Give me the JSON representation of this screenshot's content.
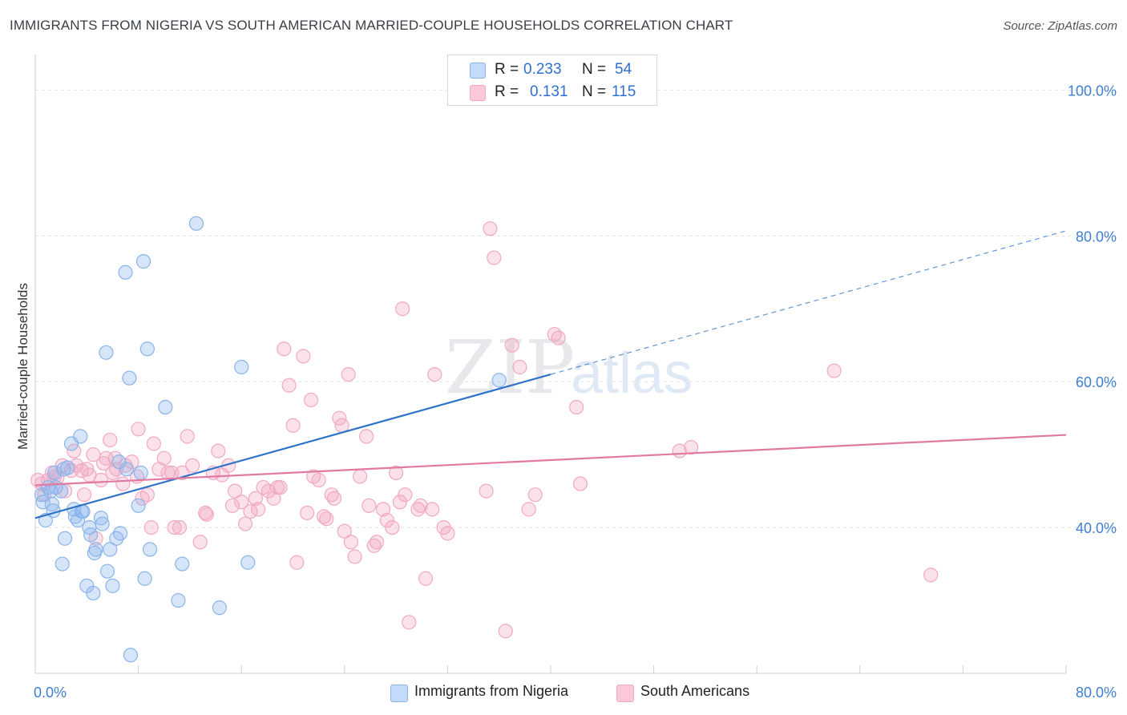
{
  "title": "IMMIGRANTS FROM NIGERIA VS SOUTH AMERICAN MARRIED-COUPLE HOUSEHOLDS CORRELATION CHART",
  "source": "Source: ZipAtlas.com",
  "watermark": {
    "zip": "ZIP",
    "atlas": "atlas"
  },
  "legend": {
    "r_label": "R =",
    "n_label": "N =",
    "series1": {
      "r": "0.233",
      "n": "54"
    },
    "series2": {
      "r": "0.131",
      "n": "115"
    }
  },
  "bottom_legend": [
    "Immigrants from Nigeria",
    "South Americans"
  ],
  "chart_data": {
    "type": "scatter",
    "ylabel": "Married-couple Households",
    "xlabel": "",
    "xlim": [
      0,
      80
    ],
    "ylim": [
      20,
      104
    ],
    "x_tick_labels": [
      "0.0%",
      "80.0%"
    ],
    "y_tick_labels": [
      "40.0%",
      "60.0%",
      "80.0%",
      "100.0%"
    ],
    "y_ticks": [
      40,
      60,
      80,
      100
    ],
    "x_minor_ticks": [
      8,
      16,
      24,
      32,
      40,
      48,
      56,
      64,
      72,
      80
    ],
    "colors": {
      "series1": "#8ab4ec",
      "series2": "#f2a9c3",
      "line1": "#2f73c9",
      "line2": "#e07aa0",
      "axis_text": "#3f7fd1"
    },
    "series": [
      {
        "name": "Immigrants from Nigeria",
        "trend": {
          "x0": 0,
          "y0": 41.3,
          "x1": 40,
          "y1": 61.0,
          "dash_to_x": 80,
          "dash_to_y": 80.7
        },
        "points": [
          [
            0.5,
            44.5
          ],
          [
            0.6,
            43.5
          ],
          [
            0.8,
            41.0
          ],
          [
            1.0,
            45.5
          ],
          [
            1.2,
            45.0
          ],
          [
            1.3,
            43.2
          ],
          [
            1.4,
            42.3
          ],
          [
            1.5,
            47.5
          ],
          [
            1.6,
            45.5
          ],
          [
            2.0,
            45.0
          ],
          [
            2.2,
            48.0
          ],
          [
            2.3,
            38.5
          ],
          [
            2.1,
            35.0
          ],
          [
            2.8,
            51.5
          ],
          [
            3.0,
            42.5
          ],
          [
            3.1,
            41.5
          ],
          [
            3.3,
            41.0
          ],
          [
            3.5,
            52.5
          ],
          [
            3.6,
            42.2
          ],
          [
            3.7,
            42.2
          ],
          [
            4.0,
            32.0
          ],
          [
            4.2,
            40.0
          ],
          [
            4.3,
            39.0
          ],
          [
            4.5,
            31.0
          ],
          [
            4.6,
            36.5
          ],
          [
            4.7,
            37.0
          ],
          [
            5.1,
            41.3
          ],
          [
            5.2,
            40.5
          ],
          [
            5.5,
            64.0
          ],
          [
            5.6,
            34.0
          ],
          [
            5.8,
            37.0
          ],
          [
            6.0,
            32.0
          ],
          [
            6.3,
            38.5
          ],
          [
            6.5,
            49.0
          ],
          [
            6.6,
            39.2
          ],
          [
            7.0,
            75.0
          ],
          [
            7.1,
            48.0
          ],
          [
            7.3,
            60.5
          ],
          [
            7.4,
            22.5
          ],
          [
            8.0,
            43.0
          ],
          [
            8.4,
            76.5
          ],
          [
            8.5,
            33.0
          ],
          [
            8.7,
            64.5
          ],
          [
            8.9,
            37.0
          ],
          [
            10.1,
            56.5
          ],
          [
            11.1,
            30.0
          ],
          [
            11.4,
            35.0
          ],
          [
            12.5,
            81.7
          ],
          [
            14.3,
            29.0
          ],
          [
            16.0,
            62.0
          ],
          [
            16.5,
            35.2
          ],
          [
            36.0,
            60.2
          ],
          [
            8.2,
            47.5
          ],
          [
            2.5,
            48.2
          ]
        ]
      },
      {
        "name": "South Americans",
        "trend": {
          "x0": 0,
          "y0": 45.8,
          "x1": 80,
          "y1": 52.7
        },
        "points": [
          [
            0.2,
            46.5
          ],
          [
            0.5,
            46.0
          ],
          [
            0.7,
            44.5
          ],
          [
            1.0,
            46.5
          ],
          [
            1.3,
            47.5
          ],
          [
            1.5,
            47.0
          ],
          [
            1.7,
            46.8
          ],
          [
            2.1,
            48.5
          ],
          [
            2.3,
            45.0
          ],
          [
            2.8,
            47.8
          ],
          [
            3.0,
            50.5
          ],
          [
            3.2,
            48.5
          ],
          [
            3.6,
            47.8
          ],
          [
            3.8,
            44.5
          ],
          [
            4.0,
            48.0
          ],
          [
            4.2,
            47.2
          ],
          [
            4.5,
            50.0
          ],
          [
            4.7,
            38.5
          ],
          [
            5.1,
            46.5
          ],
          [
            5.3,
            48.8
          ],
          [
            5.5,
            49.5
          ],
          [
            5.8,
            52.0
          ],
          [
            6.0,
            47.5
          ],
          [
            6.2,
            49.5
          ],
          [
            6.3,
            48.0
          ],
          [
            6.8,
            46.0
          ],
          [
            7.0,
            48.5
          ],
          [
            7.5,
            49.0
          ],
          [
            7.9,
            47.0
          ],
          [
            8.0,
            53.5
          ],
          [
            8.3,
            44.0
          ],
          [
            8.7,
            44.5
          ],
          [
            9.0,
            40.0
          ],
          [
            9.2,
            51.5
          ],
          [
            9.6,
            48.0
          ],
          [
            10.0,
            49.5
          ],
          [
            10.3,
            47.5
          ],
          [
            10.6,
            47.5
          ],
          [
            10.8,
            40.0
          ],
          [
            11.2,
            40.0
          ],
          [
            11.4,
            47.5
          ],
          [
            11.8,
            52.5
          ],
          [
            12.2,
            48.5
          ],
          [
            12.8,
            38.0
          ],
          [
            13.2,
            42.0
          ],
          [
            13.3,
            41.8
          ],
          [
            13.8,
            47.5
          ],
          [
            14.2,
            50.5
          ],
          [
            14.5,
            47.2
          ],
          [
            15.0,
            48.5
          ],
          [
            15.3,
            43.0
          ],
          [
            15.5,
            45.0
          ],
          [
            16.0,
            43.5
          ],
          [
            16.3,
            40.5
          ],
          [
            16.7,
            42.2
          ],
          [
            17.1,
            44.0
          ],
          [
            17.3,
            42.5
          ],
          [
            17.7,
            45.5
          ],
          [
            18.1,
            45.0
          ],
          [
            18.5,
            44.0
          ],
          [
            18.8,
            45.5
          ],
          [
            19.0,
            45.5
          ],
          [
            19.3,
            64.5
          ],
          [
            19.7,
            59.5
          ],
          [
            20.0,
            54.0
          ],
          [
            20.3,
            35.2
          ],
          [
            20.8,
            63.5
          ],
          [
            21.1,
            42.0
          ],
          [
            21.4,
            57.5
          ],
          [
            21.6,
            47.0
          ],
          [
            22.0,
            46.5
          ],
          [
            22.4,
            41.5
          ],
          [
            22.6,
            41.2
          ],
          [
            23.0,
            44.5
          ],
          [
            23.2,
            44.0
          ],
          [
            23.6,
            55.0
          ],
          [
            23.8,
            54.0
          ],
          [
            24.0,
            39.5
          ],
          [
            24.3,
            61.0
          ],
          [
            24.5,
            38.0
          ],
          [
            24.8,
            36.0
          ],
          [
            25.2,
            47.0
          ],
          [
            25.7,
            52.5
          ],
          [
            25.9,
            43.0
          ],
          [
            26.3,
            37.5
          ],
          [
            26.5,
            38.0
          ],
          [
            27.0,
            42.5
          ],
          [
            27.3,
            41.0
          ],
          [
            27.7,
            40.0
          ],
          [
            28.0,
            47.5
          ],
          [
            28.3,
            43.5
          ],
          [
            28.7,
            44.5
          ],
          [
            28.5,
            70.0
          ],
          [
            29.0,
            27.0
          ],
          [
            29.7,
            42.5
          ],
          [
            29.9,
            43.0
          ],
          [
            30.3,
            33.0
          ],
          [
            30.8,
            42.5
          ],
          [
            31.0,
            61.0
          ],
          [
            31.7,
            40.0
          ],
          [
            32.0,
            39.2
          ],
          [
            35.0,
            45.0
          ],
          [
            35.3,
            81.0
          ],
          [
            35.6,
            77.0
          ],
          [
            36.5,
            25.8
          ],
          [
            37.0,
            65.0
          ],
          [
            37.6,
            62.0
          ],
          [
            38.3,
            42.5
          ],
          [
            38.8,
            44.5
          ],
          [
            40.3,
            66.5
          ],
          [
            40.6,
            66.0
          ],
          [
            42.0,
            56.5
          ],
          [
            42.3,
            46.0
          ],
          [
            50.0,
            50.5
          ],
          [
            50.9,
            51.0
          ],
          [
            62.0,
            61.5
          ],
          [
            69.5,
            33.5
          ]
        ]
      }
    ]
  }
}
